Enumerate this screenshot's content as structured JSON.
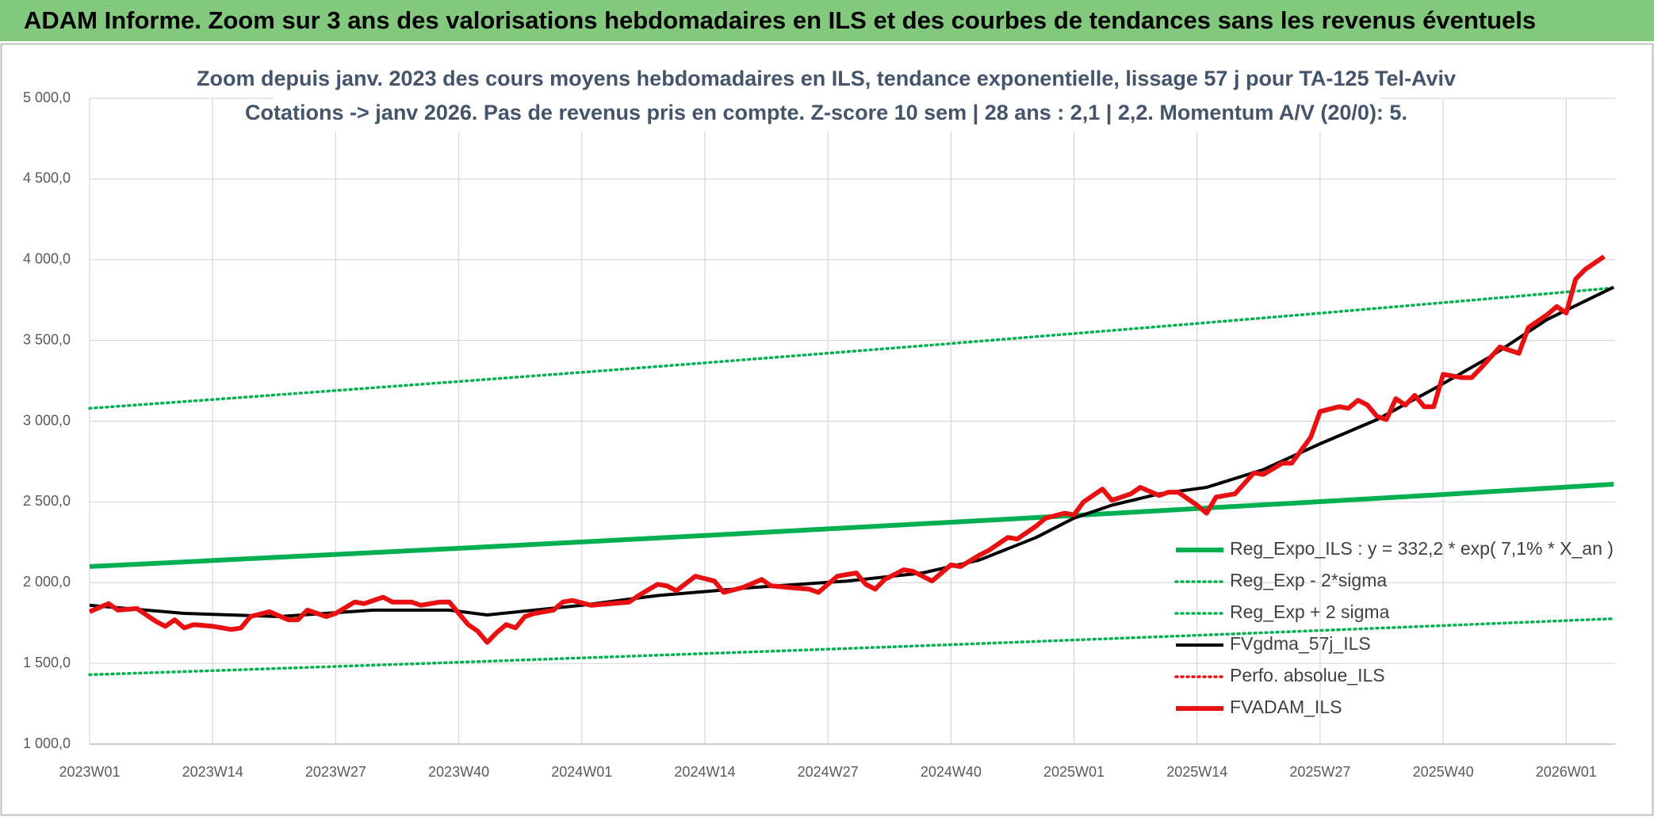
{
  "header": {
    "title": "ADAM Informe. Zoom sur 3 ans des valorisations hebdomadaires en ILS et des courbes de tendances sans les revenus éventuels"
  },
  "chart_data": {
    "type": "line",
    "title": "Zoom depuis janv. 2023 des cours moyens hebdomadaires en ILS, tendance exponentielle, lissage 57 j pour TA-125 Tel-Aviv",
    "subtitle": "Cotations -> janv 2026. Pas de revenus pris en compte. Z-score 10 sem | 28 ans : 2,1  | 2,2. Momentum A/V (20/0): 5.",
    "xlim": [
      0,
      161
    ],
    "xticks": [
      {
        "value": 0,
        "label": "2023W01"
      },
      {
        "value": 13,
        "label": "2023W14"
      },
      {
        "value": 26,
        "label": "2023W27"
      },
      {
        "value": 39,
        "label": "2023W40"
      },
      {
        "value": 52,
        "label": "2024W01"
      },
      {
        "value": 65,
        "label": "2024W14"
      },
      {
        "value": 78,
        "label": "2024W27"
      },
      {
        "value": 91,
        "label": "2024W40"
      },
      {
        "value": 104,
        "label": "2025W01"
      },
      {
        "value": 117,
        "label": "2025W14"
      },
      {
        "value": 130,
        "label": "2025W27"
      },
      {
        "value": 143,
        "label": "2025W40"
      },
      {
        "value": 156,
        "label": "2026W01"
      }
    ],
    "ylim": [
      1000,
      5000
    ],
    "yticks": [
      {
        "value": 1000,
        "label": "1 000,0"
      },
      {
        "value": 1500,
        "label": "1 500,0"
      },
      {
        "value": 2000,
        "label": "2 000,0"
      },
      {
        "value": 2500,
        "label": "2 500,0"
      },
      {
        "value": 3000,
        "label": "3 000,0"
      },
      {
        "value": 3500,
        "label": "3 500,0"
      },
      {
        "value": 4000,
        "label": "4 000,0"
      },
      {
        "value": 4500,
        "label": "4 500,0"
      },
      {
        "value": 5000,
        "label": "5 000,0"
      }
    ],
    "grid": true,
    "legend": "right",
    "series": [
      {
        "name": "Reg_Expo_ILS : y = 332,2 * exp( 7,1% *  X_an )",
        "color": "#00b050",
        "line_style": "thick",
        "x": [
          0,
          13,
          26,
          39,
          52,
          65,
          78,
          91,
          104,
          117,
          130,
          143,
          156,
          161
        ],
        "values": [
          2100,
          2137,
          2175,
          2213,
          2252,
          2292,
          2333,
          2374,
          2416,
          2459,
          2502,
          2546,
          2592,
          2610
        ]
      },
      {
        "name": "Reg_Exp - 2*sigma",
        "color": "#00b050",
        "line_style": "dotted",
        "x": [
          0,
          13,
          26,
          39,
          52,
          65,
          78,
          91,
          104,
          117,
          130,
          143,
          156,
          161
        ],
        "values": [
          1430,
          1455,
          1481,
          1507,
          1534,
          1561,
          1588,
          1616,
          1645,
          1674,
          1704,
          1734,
          1765,
          1777
        ]
      },
      {
        "name": "Reg_Exp + 2 sigma",
        "color": "#00b050",
        "line_style": "dotted",
        "x": [
          0,
          13,
          26,
          39,
          52,
          65,
          78,
          91,
          104,
          117,
          130,
          143,
          156,
          161
        ],
        "values": [
          3080,
          3134,
          3190,
          3246,
          3303,
          3361,
          3421,
          3481,
          3543,
          3605,
          3669,
          3734,
          3800,
          3826
        ]
      },
      {
        "name": "FVgdma_57j_ILS",
        "color": "#000000",
        "line_style": "solid",
        "x": [
          0,
          10,
          20,
          30,
          38,
          42,
          52,
          60,
          70,
          80,
          88,
          94,
          100,
          104,
          108,
          113,
          118,
          124,
          130,
          136,
          142,
          148,
          154,
          161
        ],
        "values": [
          1860,
          1810,
          1790,
          1830,
          1830,
          1800,
          1860,
          1920,
          1970,
          2010,
          2060,
          2140,
          2280,
          2400,
          2480,
          2550,
          2590,
          2700,
          2860,
          3010,
          3200,
          3400,
          3630,
          3830
        ]
      },
      {
        "name": "Perfo. absolue_ILS",
        "color": "#e81010",
        "line_style": "dotted",
        "x": [],
        "values": []
      },
      {
        "name": "FVADAM_ILS",
        "color": "#e81010",
        "line_style": "thick",
        "x": [
          0,
          2,
          3,
          5,
          7,
          8,
          9,
          10,
          11,
          13,
          15,
          16,
          17,
          19,
          21,
          22,
          23,
          25,
          26,
          28,
          29,
          31,
          32,
          34,
          35,
          37,
          38,
          40,
          41,
          42,
          43,
          44,
          45,
          46,
          47,
          49,
          50,
          51,
          53,
          55,
          57,
          58,
          60,
          61,
          62,
          64,
          66,
          67,
          69,
          71,
          72,
          74,
          76,
          77,
          79,
          81,
          82,
          83,
          84,
          86,
          87,
          89,
          91,
          92,
          94,
          95,
          97,
          98,
          100,
          101,
          103,
          104,
          105,
          107,
          108,
          110,
          111,
          113,
          114,
          115,
          117,
          118,
          119,
          121,
          123,
          124,
          126,
          127,
          129,
          130,
          132,
          133,
          134,
          135,
          136,
          137,
          138,
          139,
          140,
          141,
          142,
          143,
          145,
          146,
          147,
          149,
          151,
          152,
          154,
          155,
          156,
          157,
          158,
          160
        ],
        "values": [
          1820,
          1870,
          1830,
          1840,
          1760,
          1730,
          1770,
          1720,
          1740,
          1730,
          1710,
          1720,
          1790,
          1820,
          1770,
          1770,
          1830,
          1790,
          1810,
          1880,
          1870,
          1910,
          1880,
          1880,
          1860,
          1880,
          1880,
          1740,
          1700,
          1630,
          1690,
          1740,
          1720,
          1790,
          1810,
          1830,
          1880,
          1890,
          1860,
          1870,
          1880,
          1920,
          1990,
          1980,
          1950,
          2040,
          2010,
          1940,
          1970,
          2020,
          1980,
          1970,
          1960,
          1940,
          2040,
          2060,
          1990,
          1960,
          2020,
          2080,
          2070,
          2010,
          2110,
          2100,
          2170,
          2200,
          2280,
          2270,
          2350,
          2400,
          2430,
          2420,
          2500,
          2580,
          2510,
          2550,
          2590,
          2540,
          2560,
          2560,
          2480,
          2430,
          2530,
          2550,
          2680,
          2670,
          2740,
          2740,
          2900,
          3060,
          3090,
          3080,
          3130,
          3100,
          3030,
          3010,
          3140,
          3100,
          3160,
          3090,
          3090,
          3290,
          3270,
          3270,
          3330,
          3460,
          3420,
          3580,
          3660,
          3710,
          3670,
          3880,
          3940,
          4020
        ]
      }
    ]
  }
}
